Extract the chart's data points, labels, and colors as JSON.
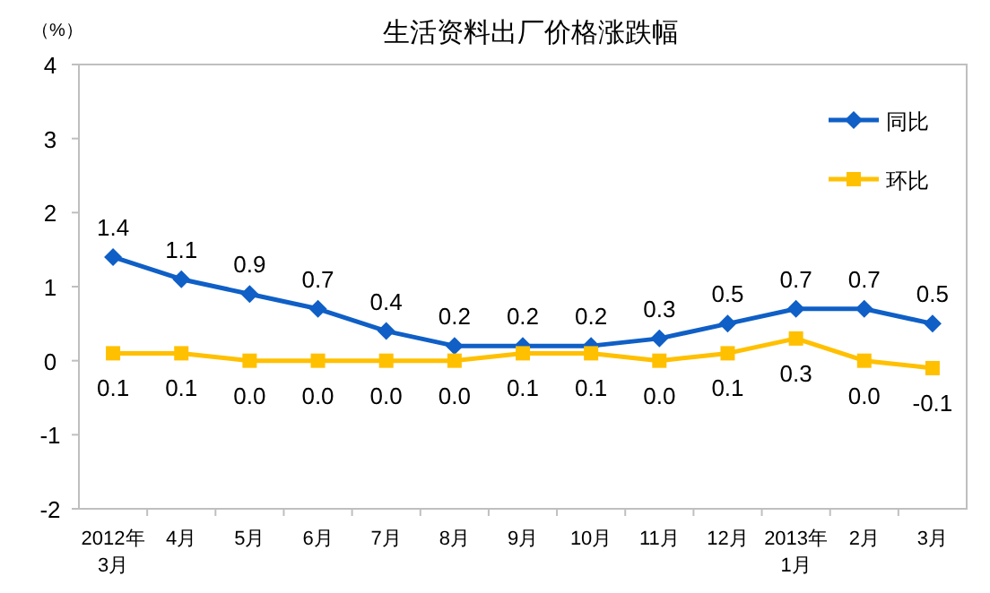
{
  "chart_data": {
    "type": "line",
    "title": "生活资料出厂价格涨跌幅",
    "ylabel": "（%）",
    "categories": [
      "2012年\n3月",
      "4月",
      "5月",
      "6月",
      "7月",
      "8月",
      "9月",
      "10月",
      "11月",
      "12月",
      "2013年\n1月",
      "2月",
      "3月"
    ],
    "series": [
      {
        "name": "同比",
        "color": "#0f5fc6",
        "marker": "diamond",
        "values": [
          1.4,
          1.1,
          0.9,
          0.7,
          0.4,
          0.2,
          0.2,
          0.2,
          0.3,
          0.5,
          0.7,
          0.7,
          0.5
        ],
        "value_labels": [
          "1.4",
          "1.1",
          "0.9",
          "0.7",
          "0.4",
          "0.2",
          "0.2",
          "0.2",
          "0.3",
          "0.5",
          "0.7",
          "0.7",
          "0.5"
        ]
      },
      {
        "name": "环比",
        "color": "#ffc000",
        "marker": "square",
        "values": [
          0.1,
          0.1,
          0.0,
          0.0,
          0.0,
          0.0,
          0.1,
          0.1,
          0.0,
          0.1,
          0.3,
          0.0,
          -0.1
        ],
        "value_labels": [
          "0.1",
          "0.1",
          "0.0",
          "0.0",
          "0.0",
          "0.0",
          "0.1",
          "0.1",
          "0.0",
          "0.1",
          "0.3",
          "0.0",
          "-0.1"
        ]
      }
    ],
    "ylim": [
      -2,
      4
    ],
    "yticks": [
      -2,
      -1,
      0,
      1,
      2,
      3,
      4
    ],
    "grid": false,
    "legend": "top right"
  }
}
